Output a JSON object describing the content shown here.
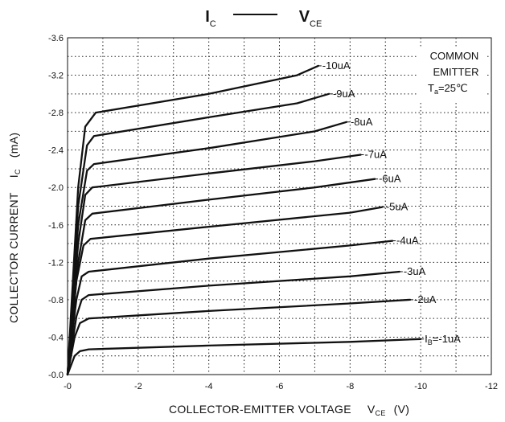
{
  "chart_data": {
    "type": "line",
    "title": {
      "left_main": "I",
      "left_sub": "C",
      "right_main": "V",
      "right_sub": "CE"
    },
    "xlabel": {
      "text": "COLLECTOR-EMITTER VOLTAGE",
      "symbol": "V",
      "symbol_sub": "CE",
      "unit": "(V)"
    },
    "ylabel": {
      "text": "COLLECTOR CURRENT",
      "symbol": "I",
      "symbol_sub": "C",
      "unit": "(mA)"
    },
    "xlim": [
      0,
      -12
    ],
    "ylim": [
      0,
      -3.6
    ],
    "grid": true,
    "x_ticks": [
      "-0",
      "-2",
      "-4",
      "-6",
      "-8",
      "-10",
      "-12"
    ],
    "y_ticks": [
      "-0.0",
      "-0.4",
      "-0.8",
      "-1.2",
      "-1.6",
      "-2.0",
      "-2.4",
      "-2.8",
      "-3.2",
      "-3.6"
    ],
    "annotation": {
      "line1": "COMMON",
      "line2": "EMITTER",
      "line3_main": "T",
      "line3_sub": "a",
      "line3_rest": "=25℃"
    },
    "series": [
      {
        "name": "I",
        "name_sub": "B",
        "name_rest": "=-1uA",
        "points": [
          [
            0,
            0
          ],
          [
            -0.1,
            -0.1
          ],
          [
            -0.2,
            -0.2
          ],
          [
            -0.35,
            -0.25
          ],
          [
            -0.6,
            -0.27
          ],
          [
            -4,
            -0.31
          ],
          [
            -8,
            -0.35
          ],
          [
            -10,
            -0.38
          ]
        ]
      },
      {
        "name": "-2uA",
        "points": [
          [
            0,
            0
          ],
          [
            -0.1,
            -0.2
          ],
          [
            -0.2,
            -0.4
          ],
          [
            -0.35,
            -0.55
          ],
          [
            -0.6,
            -0.6
          ],
          [
            -4,
            -0.68
          ],
          [
            -8,
            -0.76
          ],
          [
            -9.7,
            -0.8
          ]
        ]
      },
      {
        "name": "-3uA",
        "points": [
          [
            0,
            0
          ],
          [
            -0.12,
            -0.3
          ],
          [
            -0.25,
            -0.62
          ],
          [
            -0.4,
            -0.8
          ],
          [
            -0.6,
            -0.85
          ],
          [
            -4,
            -0.95
          ],
          [
            -8,
            -1.05
          ],
          [
            -9.4,
            -1.1
          ]
        ]
      },
      {
        "name": "-4uA",
        "points": [
          [
            0,
            0
          ],
          [
            -0.12,
            -0.4
          ],
          [
            -0.25,
            -0.8
          ],
          [
            -0.4,
            -1.05
          ],
          [
            -0.6,
            -1.1
          ],
          [
            -4,
            -1.24
          ],
          [
            -8,
            -1.38
          ],
          [
            -9.2,
            -1.43
          ]
        ]
      },
      {
        "name": "-5uA",
        "points": [
          [
            0,
            0
          ],
          [
            -0.12,
            -0.5
          ],
          [
            -0.25,
            -1.0
          ],
          [
            -0.45,
            -1.38
          ],
          [
            -0.65,
            -1.45
          ],
          [
            -4,
            -1.58
          ],
          [
            -8,
            -1.73
          ],
          [
            -8.9,
            -1.79
          ]
        ]
      },
      {
        "name": "-6uA",
        "points": [
          [
            0,
            0
          ],
          [
            -0.15,
            -0.6
          ],
          [
            -0.3,
            -1.2
          ],
          [
            -0.5,
            -1.65
          ],
          [
            -0.7,
            -1.72
          ],
          [
            -4,
            -1.87
          ],
          [
            -7,
            -2.0
          ],
          [
            -8.7,
            -2.09
          ]
        ]
      },
      {
        "name": "-7uA",
        "points": [
          [
            0,
            0
          ],
          [
            -0.15,
            -0.7
          ],
          [
            -0.3,
            -1.4
          ],
          [
            -0.5,
            -1.92
          ],
          [
            -0.7,
            -2.0
          ],
          [
            -4,
            -2.15
          ],
          [
            -7,
            -2.28
          ],
          [
            -8.3,
            -2.35
          ]
        ]
      },
      {
        "name": "-8uA",
        "points": [
          [
            0,
            0
          ],
          [
            -0.15,
            -0.8
          ],
          [
            -0.3,
            -1.6
          ],
          [
            -0.55,
            -2.18
          ],
          [
            -0.75,
            -2.25
          ],
          [
            -4,
            -2.42
          ],
          [
            -7,
            -2.6
          ],
          [
            -7.9,
            -2.7
          ]
        ]
      },
      {
        "name": "-9uA",
        "points": [
          [
            0,
            0
          ],
          [
            -0.15,
            -0.9
          ],
          [
            -0.3,
            -1.8
          ],
          [
            -0.55,
            -2.45
          ],
          [
            -0.75,
            -2.55
          ],
          [
            -4,
            -2.75
          ],
          [
            -6.5,
            -2.9
          ],
          [
            -7.4,
            -3.0
          ]
        ]
      },
      {
        "name": "-10uA",
        "points": [
          [
            0,
            0
          ],
          [
            -0.15,
            -1.0
          ],
          [
            -0.3,
            -2.0
          ],
          [
            -0.5,
            -2.65
          ],
          [
            -0.8,
            -2.8
          ],
          [
            -4,
            -3.0
          ],
          [
            -6.5,
            -3.2
          ],
          [
            -7.1,
            -3.3
          ]
        ]
      }
    ]
  }
}
